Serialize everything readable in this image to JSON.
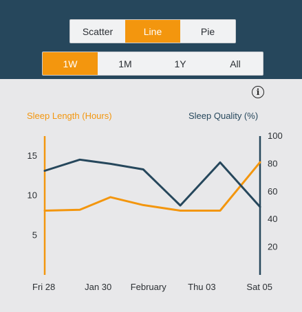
{
  "chart_type_tabs": [
    {
      "label": "Scatter",
      "active": false
    },
    {
      "label": "Line",
      "active": true
    },
    {
      "label": "Pie",
      "active": false
    }
  ],
  "range_tabs": [
    {
      "label": "1W",
      "active": true
    },
    {
      "label": "1M",
      "active": false
    },
    {
      "label": "1Y",
      "active": false
    },
    {
      "label": "All",
      "active": false
    }
  ],
  "info_icon": "i",
  "colors": {
    "accent": "#f3960e",
    "header": "#26475c",
    "background": "#e8e8ea"
  },
  "chart_data": {
    "type": "line",
    "x": [
      "Fri 28",
      "Jan 30",
      "February",
      "Thu 03",
      "Sat 05"
    ],
    "left_axis": {
      "label": "Sleep Length (Hours)",
      "ticks": [
        "5",
        "10",
        "15"
      ],
      "range": [
        0,
        17.5
      ]
    },
    "right_axis": {
      "label": "Sleep Quality (%)",
      "ticks": [
        "20",
        "40",
        "60",
        "80",
        "100"
      ],
      "range": [
        0,
        100
      ]
    },
    "series": [
      {
        "name": "Sleep Length (Hours)",
        "axis": "left",
        "color": "#f3960e",
        "points": [
          [
            0,
            8.1
          ],
          [
            0.88,
            8.2
          ],
          [
            1.65,
            9.8
          ],
          [
            2.47,
            8.8
          ],
          [
            3.4,
            8.1
          ],
          [
            4.4,
            8.1
          ],
          [
            5.4,
            14.2
          ]
        ]
      },
      {
        "name": "Sleep Quality (%)",
        "axis": "right",
        "color": "#26475c",
        "points": [
          [
            0,
            75
          ],
          [
            0.88,
            83
          ],
          [
            1.65,
            80
          ],
          [
            2.47,
            76
          ],
          [
            3.4,
            50
          ],
          [
            4.4,
            81
          ],
          [
            5.4,
            49
          ]
        ]
      }
    ],
    "x_positions": [
      0,
      1.34,
      2.6,
      3.94,
      5.4
    ],
    "grid": false,
    "legend": "none"
  }
}
